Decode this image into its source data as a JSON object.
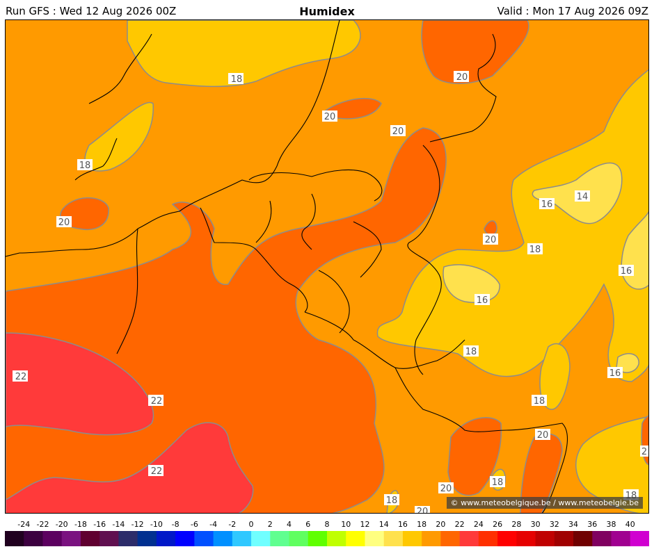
{
  "header": {
    "run": "Run GFS : Wed 12 Aug 2026 00Z",
    "title": "Humidex",
    "valid": "Valid : Mon 17 Aug 2026 09Z"
  },
  "map": {
    "copyright": "© www.meteobelgique.be / www.meteobelgie.be",
    "contour_labels": [
      "18",
      "20",
      "20",
      "20",
      "18",
      "20",
      "14",
      "16",
      "20",
      "18",
      "16",
      "16",
      "18",
      "16",
      "22",
      "22",
      "22",
      "18",
      "20",
      "20",
      "18",
      "18",
      "20",
      "18",
      "2"
    ]
  },
  "colors": {
    "c14_16": "#ffe14d",
    "c16_18": "#ffc800",
    "c18_20": "#ff9a00",
    "c20_22": "#ff6600",
    "c22_24": "#ff3a3a",
    "contour": "#8c8c8c",
    "border": "#000000"
  },
  "legend": {
    "ticks": [
      "-24",
      "-22",
      "-20",
      "-18",
      "-16",
      "-14",
      "-12",
      "-10",
      "-8",
      "-6",
      "-4",
      "-2",
      "0",
      "2",
      "4",
      "6",
      "8",
      "10",
      "12",
      "14",
      "16",
      "18",
      "20",
      "22",
      "24",
      "26",
      "28",
      "30",
      "32",
      "34",
      "36",
      "38",
      "40"
    ],
    "colors": [
      "#20001f",
      "#3c0040",
      "#5c0060",
      "#7a1280",
      "#600030",
      "#601050",
      "#2c2c6a",
      "#003090",
      "#0018c8",
      "#0000ff",
      "#0050ff",
      "#0090ff",
      "#30c8ff",
      "#70ffff",
      "#60ff90",
      "#60ff60",
      "#60ff00",
      "#c0ff00",
      "#ffff00",
      "#ffff80",
      "#ffe14d",
      "#ffc800",
      "#ff9a00",
      "#ff6600",
      "#ff3a3a",
      "#ff3000",
      "#ff0000",
      "#e60000",
      "#c00000",
      "#a00000",
      "#700000",
      "#800060",
      "#a00090",
      "#d000d0"
    ]
  }
}
